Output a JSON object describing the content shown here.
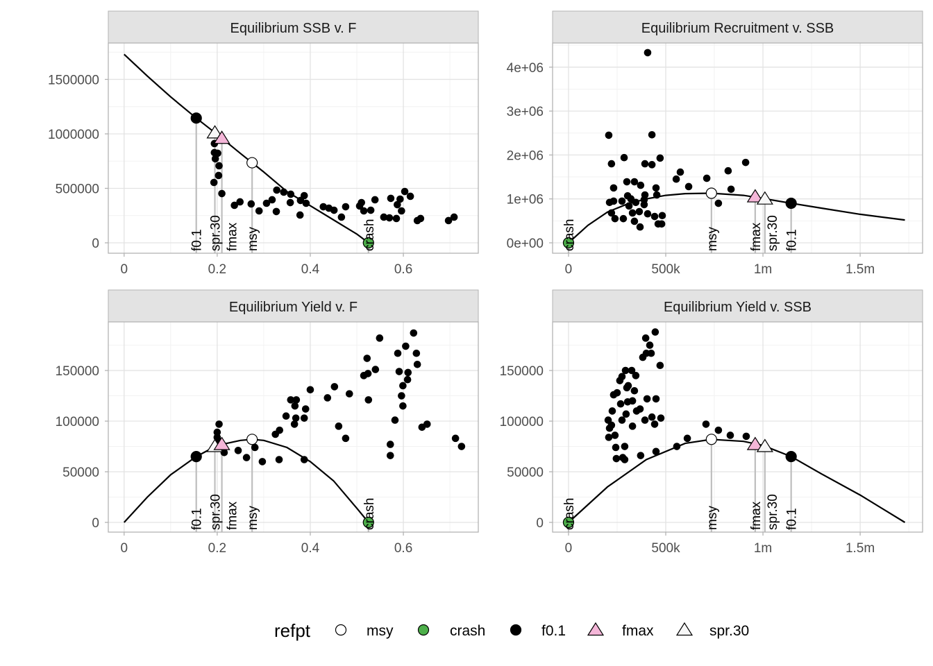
{
  "chart_data": [
    {
      "type": "scatter",
      "title": "Equilibrium SSB v. F",
      "xlim": [
        -0.034,
        0.761
      ],
      "ylim": [
        -95500,
        1834000
      ],
      "xticks": [
        0,
        0.2,
        0.4,
        0.6
      ],
      "xtick_labels": [
        "0",
        "0.2",
        "0.4",
        "0.6"
      ],
      "yticks": [
        0,
        500000,
        1000000,
        1500000
      ],
      "ytick_labels": [
        "0",
        "500000",
        "1000000",
        "1500000"
      ],
      "curve": [
        [
          0,
          1730000
        ],
        [
          0.05,
          1530000
        ],
        [
          0.1,
          1340000
        ],
        [
          0.155,
          1145000
        ],
        [
          0.2,
          995000
        ],
        [
          0.25,
          820000
        ],
        [
          0.275,
          735000
        ],
        [
          0.3,
          650000
        ],
        [
          0.35,
          470000
        ],
        [
          0.4,
          340000
        ],
        [
          0.45,
          210000
        ],
        [
          0.5,
          80000
        ],
        [
          0.525,
          0
        ]
      ],
      "points": [
        [
          0.194,
          911000
        ],
        [
          0.194,
          828000
        ],
        [
          0.201,
          822000
        ],
        [
          0.196,
          771000
        ],
        [
          0.204,
          707000
        ],
        [
          0.203,
          618000
        ],
        [
          0.193,
          554000
        ],
        [
          0.21,
          452000
        ],
        [
          0.237,
          344000
        ],
        [
          0.249,
          376000
        ],
        [
          0.273,
          357000
        ],
        [
          0.29,
          293000
        ],
        [
          0.306,
          363000
        ],
        [
          0.318,
          395000
        ],
        [
          0.327,
          287000
        ],
        [
          0.328,
          484000
        ],
        [
          0.343,
          465000
        ],
        [
          0.358,
          446000
        ],
        [
          0.357,
          369000
        ],
        [
          0.387,
          433000
        ],
        [
          0.379,
          389000
        ],
        [
          0.391,
          363000
        ],
        [
          0.378,
          255000
        ],
        [
          0.428,
          331000
        ],
        [
          0.44,
          318000
        ],
        [
          0.451,
          299000
        ],
        [
          0.476,
          331000
        ],
        [
          0.467,
          236000
        ],
        [
          0.51,
          369000
        ],
        [
          0.506,
          338000
        ],
        [
          0.515,
          293000
        ],
        [
          0.53,
          299000
        ],
        [
          0.539,
          395000
        ],
        [
          0.573,
          408000
        ],
        [
          0.593,
          401000
        ],
        [
          0.587,
          350000
        ],
        [
          0.596,
          293000
        ],
        [
          0.603,
          471000
        ],
        [
          0.615,
          427000
        ],
        [
          0.558,
          236000
        ],
        [
          0.57,
          229000
        ],
        [
          0.585,
          223000
        ],
        [
          0.63,
          204000
        ],
        [
          0.637,
          223000
        ],
        [
          0.697,
          204000
        ],
        [
          0.709,
          236000
        ]
      ],
      "refpts": [
        {
          "name": "f0.1",
          "x": 0.155,
          "y": 1145000
        },
        {
          "name": "spr.30",
          "x": 0.195,
          "y": 1010000
        },
        {
          "name": "fmax",
          "x": 0.21,
          "y": 960000
        },
        {
          "name": "msy",
          "x": 0.275,
          "y": 735000
        },
        {
          "name": "crash",
          "x": 0.525,
          "y": 0
        }
      ]
    },
    {
      "type": "scatter",
      "title": "Equilibrium Recruitment v. SSB",
      "xlim": [
        -82000,
        1821000
      ],
      "ylim": [
        -237000,
        4550000
      ],
      "xticks": [
        0,
        500000,
        1000000,
        1500000
      ],
      "xtick_labels": [
        "0",
        "500k",
        "1m",
        "1.5m"
      ],
      "yticks": [
        0,
        1000000,
        2000000,
        3000000,
        4000000
      ],
      "ytick_labels": [
        "0e+00",
        "1e+06",
        "2e+06",
        "3e+06",
        "4e+06"
      ],
      "curve": [
        [
          0,
          0
        ],
        [
          100000,
          400000
        ],
        [
          200000,
          700000
        ],
        [
          300000,
          880000
        ],
        [
          400000,
          1000000
        ],
        [
          500000,
          1080000
        ],
        [
          600000,
          1120000
        ],
        [
          735000,
          1130000
        ],
        [
          900000,
          1080000
        ],
        [
          1000000,
          1010000
        ],
        [
          1145000,
          900000
        ],
        [
          1300000,
          790000
        ],
        [
          1500000,
          650000
        ],
        [
          1730000,
          520000
        ]
      ],
      "points": [
        [
          407000,
          4330000
        ],
        [
          207000,
          2450000
        ],
        [
          429000,
          2460000
        ],
        [
          286000,
          1940000
        ],
        [
          221000,
          1800000
        ],
        [
          393000,
          1800000
        ],
        [
          429000,
          1780000
        ],
        [
          471000,
          1930000
        ],
        [
          575000,
          1610000
        ],
        [
          554000,
          1450000
        ],
        [
          618000,
          1280000
        ],
        [
          711000,
          1470000
        ],
        [
          821000,
          1640000
        ],
        [
          911000,
          1830000
        ],
        [
          836000,
          1220000
        ],
        [
          771000,
          900000
        ],
        [
          232000,
          1250000
        ],
        [
          300000,
          1390000
        ],
        [
          339000,
          1390000
        ],
        [
          371000,
          1310000
        ],
        [
          450000,
          1250000
        ],
        [
          393000,
          1090000
        ],
        [
          454000,
          1090000
        ],
        [
          304000,
          1070000
        ],
        [
          321000,
          1000000
        ],
        [
          211000,
          920000
        ],
        [
          232000,
          950000
        ],
        [
          275000,
          950000
        ],
        [
          346000,
          920000
        ],
        [
          389000,
          870000
        ],
        [
          221000,
          680000
        ],
        [
          239000,
          550000
        ],
        [
          282000,
          550000
        ],
        [
          329000,
          680000
        ],
        [
          364000,
          710000
        ],
        [
          407000,
          660000
        ],
        [
          443000,
          600000
        ],
        [
          482000,
          620000
        ],
        [
          339000,
          490000
        ],
        [
          368000,
          360000
        ],
        [
          461000,
          430000
        ],
        [
          479000,
          430000
        ],
        [
          311000,
          840000
        ],
        [
          389000,
          980000
        ]
      ],
      "refpts": [
        {
          "name": "crash",
          "x": 0,
          "y": 0
        },
        {
          "name": "msy",
          "x": 735000,
          "y": 1130000
        },
        {
          "name": "fmax",
          "x": 960000,
          "y": 1050000
        },
        {
          "name": "spr.30",
          "x": 1010000,
          "y": 1000000
        },
        {
          "name": "f0.1",
          "x": 1145000,
          "y": 900000
        }
      ]
    },
    {
      "type": "scatter",
      "title": "Equilibrium Yield v. F",
      "xlim": [
        -0.034,
        0.761
      ],
      "ylim": [
        -9600,
        198000
      ],
      "xticks": [
        0,
        0.2,
        0.4,
        0.6
      ],
      "xtick_labels": [
        "0",
        "0.2",
        "0.4",
        "0.6"
      ],
      "yticks": [
        0,
        50000,
        100000,
        150000
      ],
      "ytick_labels": [
        "0",
        "50000",
        "100000",
        "150000"
      ],
      "curve": [
        [
          0,
          0
        ],
        [
          0.05,
          25000
        ],
        [
          0.1,
          47000
        ],
        [
          0.155,
          65000
        ],
        [
          0.2,
          76000
        ],
        [
          0.25,
          81000
        ],
        [
          0.275,
          82000
        ],
        [
          0.3,
          81000
        ],
        [
          0.35,
          74000
        ],
        [
          0.4,
          60000
        ],
        [
          0.45,
          41000
        ],
        [
          0.5,
          14000
        ],
        [
          0.525,
          0
        ]
      ],
      "points": [
        [
          0.204,
          97000
        ],
        [
          0.2,
          89000
        ],
        [
          0.2,
          84000
        ],
        [
          0.204,
          80000
        ],
        [
          0.198,
          74000
        ],
        [
          0.215,
          69000
        ],
        [
          0.245,
          71000
        ],
        [
          0.263,
          64000
        ],
        [
          0.281,
          74000
        ],
        [
          0.297,
          60000
        ],
        [
          0.325,
          87000
        ],
        [
          0.334,
          91000
        ],
        [
          0.333,
          62000
        ],
        [
          0.387,
          62000
        ],
        [
          0.348,
          105000
        ],
        [
          0.358,
          121000
        ],
        [
          0.37,
          121000
        ],
        [
          0.367,
          115000
        ],
        [
          0.369,
          103000
        ],
        [
          0.366,
          97000
        ],
        [
          0.387,
          103000
        ],
        [
          0.4,
          131000
        ],
        [
          0.39,
          112000
        ],
        [
          0.437,
          123000
        ],
        [
          0.452,
          134000
        ],
        [
          0.461,
          95000
        ],
        [
          0.476,
          83000
        ],
        [
          0.484,
          127000
        ],
        [
          0.515,
          145000
        ],
        [
          0.522,
          162000
        ],
        [
          0.524,
          147000
        ],
        [
          0.525,
          121000
        ],
        [
          0.54,
          151000
        ],
        [
          0.549,
          182000
        ],
        [
          0.572,
          77000
        ],
        [
          0.572,
          66000
        ],
        [
          0.582,
          101000
        ],
        [
          0.588,
          167000
        ],
        [
          0.591,
          149000
        ],
        [
          0.596,
          125000
        ],
        [
          0.599,
          135000
        ],
        [
          0.599,
          115000
        ],
        [
          0.605,
          174000
        ],
        [
          0.609,
          141000
        ],
        [
          0.61,
          148000
        ],
        [
          0.622,
          187000
        ],
        [
          0.628,
          167000
        ],
        [
          0.63,
          156000
        ],
        [
          0.64,
          94000
        ],
        [
          0.651,
          97000
        ],
        [
          0.712,
          83000
        ],
        [
          0.725,
          75000
        ]
      ],
      "refpts": [
        {
          "name": "f0.1",
          "x": 0.155,
          "y": 65000
        },
        {
          "name": "spr.30",
          "x": 0.195,
          "y": 75000
        },
        {
          "name": "fmax",
          "x": 0.21,
          "y": 77000
        },
        {
          "name": "msy",
          "x": 0.275,
          "y": 82000
        },
        {
          "name": "crash",
          "x": 0.525,
          "y": 0
        }
      ]
    },
    {
      "type": "scatter",
      "title": "Equilibrium Yield v. SSB",
      "xlim": [
        -82000,
        1821000
      ],
      "ylim": [
        -9600,
        198000
      ],
      "xticks": [
        0,
        500000,
        1000000,
        1500000
      ],
      "xtick_labels": [
        "0",
        "500k",
        "1m",
        "1.5m"
      ],
      "yticks": [
        0,
        50000,
        100000,
        150000
      ],
      "ytick_labels": [
        "0",
        "50000",
        "100000",
        "150000"
      ],
      "curve": [
        [
          0,
          0
        ],
        [
          200000,
          35000
        ],
        [
          400000,
          62000
        ],
        [
          600000,
          78000
        ],
        [
          735000,
          82000
        ],
        [
          900000,
          80000
        ],
        [
          1000000,
          76000
        ],
        [
          1145000,
          65000
        ],
        [
          1300000,
          48000
        ],
        [
          1500000,
          27000
        ],
        [
          1730000,
          0
        ]
      ],
      "points": [
        [
          397000,
          182000
        ],
        [
          446000,
          188000
        ],
        [
          418000,
          175000
        ],
        [
          400000,
          167000
        ],
        [
          425000,
          167000
        ],
        [
          471000,
          155000
        ],
        [
          382000,
          163000
        ],
        [
          293000,
          150000
        ],
        [
          325000,
          150000
        ],
        [
          346000,
          145000
        ],
        [
          275000,
          144000
        ],
        [
          307000,
          135000
        ],
        [
          300000,
          133000
        ],
        [
          250000,
          128000
        ],
        [
          232000,
          126000
        ],
        [
          264000,
          140000
        ],
        [
          339000,
          130000
        ],
        [
          404000,
          122000
        ],
        [
          450000,
          122000
        ],
        [
          304000,
          119000
        ],
        [
          329000,
          120000
        ],
        [
          268000,
          117000
        ],
        [
          368000,
          112000
        ],
        [
          296000,
          107000
        ],
        [
          350000,
          110000
        ],
        [
          429000,
          104000
        ],
        [
          475000,
          103000
        ],
        [
          225000,
          110000
        ],
        [
          204000,
          101000
        ],
        [
          221000,
          96000
        ],
        [
          275000,
          101000
        ],
        [
          329000,
          95000
        ],
        [
          393000,
          101000
        ],
        [
          443000,
          97000
        ],
        [
          207000,
          84000
        ],
        [
          239000,
          86000
        ],
        [
          243000,
          74000
        ],
        [
          289000,
          75000
        ],
        [
          246000,
          63000
        ],
        [
          289000,
          62000
        ],
        [
          371000,
          66000
        ],
        [
          450000,
          70000
        ],
        [
          557000,
          75000
        ],
        [
          611000,
          83000
        ],
        [
          707000,
          97000
        ],
        [
          771000,
          91000
        ],
        [
          832000,
          86000
        ],
        [
          914000,
          85000
        ],
        [
          211000,
          93000
        ],
        [
          279000,
          64000
        ]
      ],
      "refpts": [
        {
          "name": "crash",
          "x": 0,
          "y": 0
        },
        {
          "name": "msy",
          "x": 735000,
          "y": 82000
        },
        {
          "name": "fmax",
          "x": 960000,
          "y": 77000
        },
        {
          "name": "spr.30",
          "x": 1010000,
          "y": 75000
        },
        {
          "name": "f0.1",
          "x": 1145000,
          "y": 65000
        }
      ]
    }
  ],
  "legend": {
    "title": "refpt",
    "placement": "bottom",
    "items": [
      {
        "label": "msy",
        "shape": "circle",
        "fill": "#ffffff"
      },
      {
        "label": "crash",
        "shape": "circle",
        "fill": "#4daf4a"
      },
      {
        "label": "f0.1",
        "shape": "circle",
        "fill": "#000000"
      },
      {
        "label": "fmax",
        "shape": "triangle",
        "fill": "#f4b6d8"
      },
      {
        "label": "spr.30",
        "shape": "triangle",
        "fill": "#f7f7f7"
      }
    ]
  }
}
